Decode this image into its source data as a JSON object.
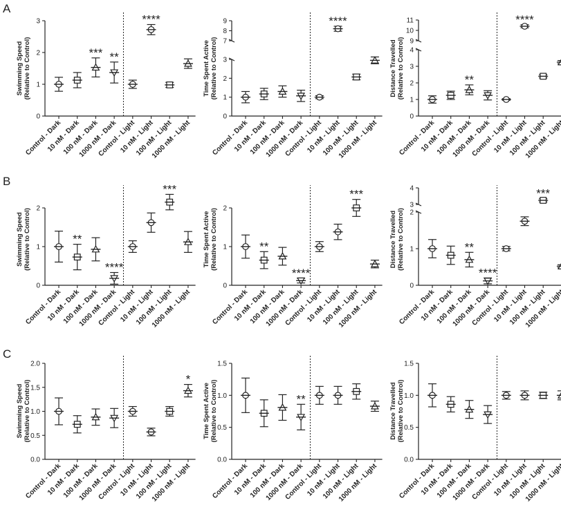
{
  "chart_data": [
    {
      "type": "scatter",
      "panel": "A",
      "ylabel": "Swimming Speed\n(Relative to Control)",
      "axis_break": false,
      "ylim": [
        0,
        3
      ],
      "yticks": [
        "0",
        "1",
        "2",
        "3"
      ],
      "categories": [
        "Control - Dark",
        "10 nM - Dark",
        "100 nM - Dark",
        "1000 nM - Dark",
        "Control - Light",
        "10 nM - Light",
        "100 nM - Light",
        "1000 nM - Light"
      ],
      "values": [
        1.0,
        1.13,
        1.53,
        1.37,
        1.0,
        2.72,
        0.98,
        1.65
      ],
      "errors": [
        0.22,
        0.24,
        0.3,
        0.33,
        0.13,
        0.16,
        0.08,
        0.15
      ],
      "significance": [
        "",
        "",
        "***",
        "**",
        "",
        "****",
        "",
        ""
      ]
    },
    {
      "type": "scatter",
      "panel": "A",
      "ylabel": "Time Spent Active\n(Relative to Control)",
      "axis_break": true,
      "ylim": [
        0,
        9
      ],
      "yticks": [
        "0",
        "1",
        "2",
        "3",
        "7",
        "8",
        "9"
      ],
      "categories": [
        "Control - Dark",
        "10 nM - Dark",
        "100 nM - Dark",
        "1000 nM - Dark",
        "Control - Light",
        "10 nM - Light",
        "100 nM - Light",
        "1000 nM - Light"
      ],
      "values": [
        1.0,
        1.17,
        1.3,
        1.07,
        1.0,
        8.2,
        2.07,
        2.95
      ],
      "errors": [
        0.3,
        0.3,
        0.3,
        0.3,
        0.08,
        0.25,
        0.15,
        0.18
      ],
      "significance": [
        "",
        "",
        "",
        "",
        "",
        "****",
        "",
        ""
      ]
    },
    {
      "type": "scatter",
      "panel": "A",
      "ylabel": "Distance Travelled\n(Relative to Control)",
      "axis_break": true,
      "ylim": [
        0,
        11
      ],
      "yticks": [
        "0",
        "1",
        "2",
        "3",
        "4",
        "9",
        "10",
        "11"
      ],
      "categories": [
        "Control - Dark",
        "10 nM - Dark",
        "100 nM - Dark",
        "1000 nM - Dark",
        "Control - Light",
        "10 nM - Light",
        "100 nM - Light",
        "1000 nM - Light"
      ],
      "values": [
        1.0,
        1.25,
        1.58,
        1.25,
        1.0,
        10.4,
        2.4,
        3.25
      ],
      "errors": [
        0.22,
        0.25,
        0.3,
        0.28,
        0.05,
        0.15,
        0.1,
        0.1
      ],
      "significance": [
        "",
        "",
        "**",
        "",
        "",
        "****",
        "",
        ""
      ]
    },
    {
      "type": "scatter",
      "panel": "B",
      "ylabel": "Swimming Speed\n(Relative to Control)",
      "axis_break": false,
      "ylim": [
        0,
        2.5
      ],
      "yticks": [
        "0",
        "1",
        "2"
      ],
      "categories": [
        "Control - Dark",
        "10 nM - Dark",
        "100 nM - Dark",
        "1000 nM - Dark",
        "Control - Light",
        "10 nM - Light",
        "100 nM - Light",
        "1000 nM - Light"
      ],
      "values": [
        1.0,
        0.73,
        0.93,
        0.18,
        1.0,
        1.62,
        2.15,
        1.12
      ],
      "errors": [
        0.4,
        0.33,
        0.3,
        0.15,
        0.15,
        0.25,
        0.2,
        0.27
      ],
      "significance": [
        "",
        "**",
        "",
        "****",
        "",
        "",
        "***",
        ""
      ]
    },
    {
      "type": "scatter",
      "panel": "B",
      "ylabel": "Time Spent Active\n(Relative to Control)",
      "axis_break": false,
      "ylim": [
        0,
        2.5
      ],
      "yticks": [
        "0",
        "1",
        "2"
      ],
      "categories": [
        "Control - Dark",
        "10 nM - Dark",
        "100 nM - Dark",
        "1000 nM - Dark",
        "Control - Light",
        "10 nM - Light",
        "100 nM - Light",
        "1000 nM - Light"
      ],
      "values": [
        1.0,
        0.65,
        0.75,
        0.12,
        1.0,
        1.38,
        2.0,
        0.55
      ],
      "errors": [
        0.3,
        0.22,
        0.23,
        0.06,
        0.13,
        0.2,
        0.22,
        0.1
      ],
      "significance": [
        "",
        "**",
        "",
        "****",
        "",
        "",
        "***",
        ""
      ]
    },
    {
      "type": "scatter",
      "panel": "B",
      "ylabel": "Distance Travelled\n(Relative to Control)",
      "axis_break": true,
      "ylim": [
        0,
        4
      ],
      "yticks": [
        "0",
        "1",
        "2",
        "3",
        "4"
      ],
      "categories": [
        "Control - Dark",
        "10 nM - Dark",
        "100 nM - Dark",
        "1000 nM - Dark",
        "Control - Light",
        "10 nM - Light",
        "100 nM - Light",
        "1000 nM - Light"
      ],
      "values": [
        1.0,
        0.82,
        0.7,
        0.12,
        1.0,
        1.75,
        3.25,
        0.52
      ],
      "errors": [
        0.25,
        0.25,
        0.2,
        0.08,
        0.06,
        0.12,
        0.1,
        0.04
      ],
      "significance": [
        "",
        "",
        "**",
        "****",
        "",
        "",
        "***",
        ""
      ]
    },
    {
      "type": "scatter",
      "panel": "C",
      "ylabel": "Swimming Speed\n(Relative to Control)",
      "axis_break": false,
      "ylim": [
        0,
        2
      ],
      "yticks": [
        "0.0",
        "0.5",
        "1.0",
        "1.5",
        "2.0"
      ],
      "categories": [
        "Control - Dark",
        "10 nM - Dark",
        "100 nM - Dark",
        "1000 nM - Dark",
        "Control - Light",
        "10 nM - Light",
        "100 nM - Light",
        "1000 nM - Light"
      ],
      "values": [
        1.0,
        0.73,
        0.88,
        0.86,
        1.0,
        0.57,
        1.0,
        1.43
      ],
      "errors": [
        0.28,
        0.18,
        0.17,
        0.2,
        0.1,
        0.08,
        0.1,
        0.13
      ],
      "significance": [
        "",
        "",
        "",
        "",
        "",
        "",
        "",
        "*"
      ]
    },
    {
      "type": "scatter",
      "panel": "C",
      "ylabel": "Time Spent Active\n(Relative to Control)",
      "axis_break": false,
      "ylim": [
        0,
        1.5
      ],
      "yticks": [
        "0.0",
        "0.5",
        "1.0",
        "1.5"
      ],
      "categories": [
        "Control - Dark",
        "10 nM - Dark",
        "100 nM - Dark",
        "1000 nM - Dark",
        "Control - Light",
        "10 nM - Light",
        "100 nM - Light",
        "1000 nM - Light"
      ],
      "values": [
        1.0,
        0.72,
        0.81,
        0.66,
        1.0,
        1.0,
        1.06,
        0.83
      ],
      "errors": [
        0.27,
        0.21,
        0.2,
        0.2,
        0.14,
        0.14,
        0.12,
        0.08
      ],
      "significance": [
        "",
        "",
        "",
        "**",
        "",
        "",
        "",
        ""
      ]
    },
    {
      "type": "scatter",
      "panel": "C",
      "ylabel": "Distance Travelled\n(Relative to Control)",
      "axis_break": false,
      "ylim": [
        0,
        1.5
      ],
      "yticks": [
        "0.0",
        "0.5",
        "1.0",
        "1.5"
      ],
      "categories": [
        "Control - Dark",
        "10 nM - Dark",
        "100 nM - Dark",
        "1000 nM - Dark",
        "Control - Light",
        "10 nM - Light",
        "100 nM - Light",
        "1000 nM - Light"
      ],
      "values": [
        1.0,
        0.86,
        0.78,
        0.7,
        1.0,
        1.0,
        1.0,
        1.0
      ],
      "errors": [
        0.18,
        0.12,
        0.14,
        0.14,
        0.06,
        0.07,
        0.05,
        0.07
      ],
      "significance": [
        "",
        "",
        "",
        "",
        "",
        "",
        "",
        ""
      ]
    }
  ],
  "markers": [
    "circle-plus",
    "square-plus",
    "triangle-plus",
    "inverted-triangle-plus",
    "circle-plus",
    "circle",
    "square",
    "triangle"
  ],
  "panel_letters": [
    "A",
    "B",
    "C"
  ],
  "colors": {
    "ink": "#222222",
    "background": "#ffffff"
  }
}
